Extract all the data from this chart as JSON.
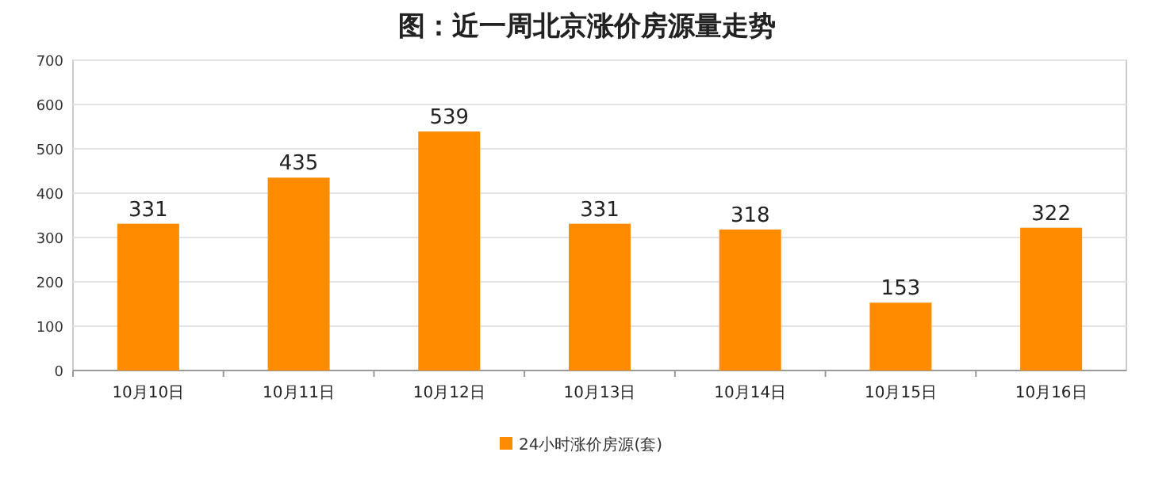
{
  "chart_data": {
    "type": "bar",
    "title": "图：近一周北京涨价房源量走势",
    "categories": [
      "10月10日",
      "10月11日",
      "10月12日",
      "10月13日",
      "10月14日",
      "10月15日",
      "10月16日"
    ],
    "series": [
      {
        "name": "24小时涨价房源(套)",
        "color": "#ff8c00",
        "values": [
          331,
          435,
          539,
          331,
          318,
          153,
          322
        ]
      }
    ],
    "ylim": [
      0,
      700
    ],
    "yticks": [
      0,
      100,
      200,
      300,
      400,
      500,
      600,
      700
    ],
    "grid": "y",
    "legend": "bottom",
    "data_labels": true
  }
}
